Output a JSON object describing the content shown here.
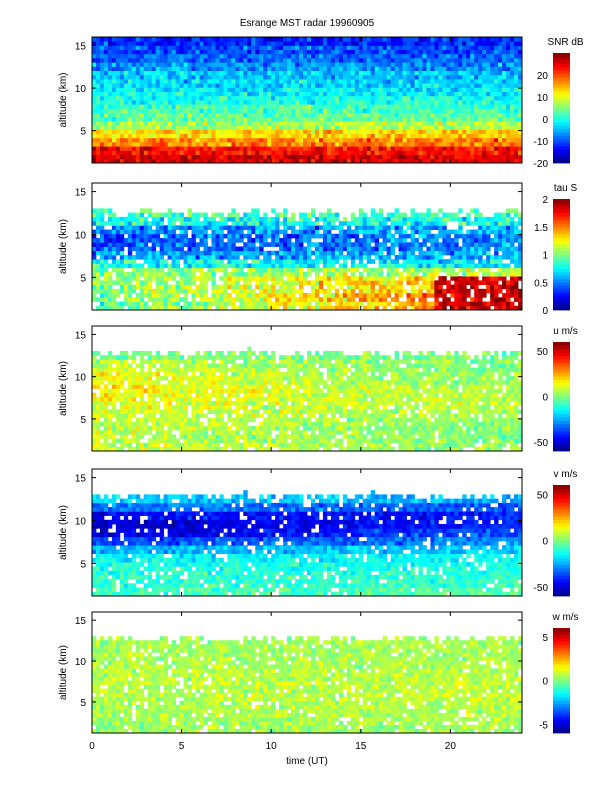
{
  "chart_data": {
    "type": "heatmap",
    "title": "Esrange MST radar 19960905",
    "xlabel": "time (UT)",
    "xlim": [
      0,
      24
    ],
    "xticks": [
      "0",
      "5",
      "10",
      "15",
      "20"
    ],
    "xtick_values": [
      0,
      5,
      10,
      15,
      20
    ],
    "ylim": [
      1.2,
      16
    ],
    "yticks": [
      "5",
      "10",
      "15"
    ],
    "ytick_values": [
      5,
      10,
      15
    ],
    "panels": [
      {
        "ylabel": "altitude (km)",
        "colorbar_label": "SNR dB",
        "clim": [
          -20,
          30
        ],
        "cticks": [
          "20",
          "10",
          "0",
          "-10",
          "-20"
        ],
        "ctick_values": [
          20,
          10,
          0,
          -10,
          -20
        ],
        "altitude_km": [
          1.5,
          2.5,
          3.5,
          4.5,
          5.5,
          6.5,
          7.5,
          8.5,
          9.5,
          10.5,
          11.5,
          12.5,
          13.5,
          14.5,
          15.5
        ],
        "mean_0_12h": [
          26,
          24,
          16,
          13,
          6,
          3,
          2,
          0,
          -2,
          -3,
          -4,
          -6,
          -8,
          -10,
          -12
        ],
        "mean_12_24h": [
          25,
          23,
          18,
          14,
          8,
          4,
          2,
          0,
          -2,
          -3,
          -4,
          -7,
          -9,
          -10,
          -12
        ],
        "noise": 4,
        "top_km": 16,
        "gap_fraction": 0
      },
      {
        "ylabel": "altitude (km)",
        "colorbar_label": "tau S",
        "clim": [
          0,
          2
        ],
        "cticks": [
          "2",
          "1.5",
          "1",
          "0.5",
          "0"
        ],
        "ctick_values": [
          2,
          1.5,
          1,
          0.5,
          0
        ],
        "altitude_km": [
          1.5,
          2.5,
          3.5,
          4.5,
          5.5,
          6.5,
          7.5,
          8.5,
          9.5,
          10.5,
          11.5,
          12.5,
          13.5,
          14.5,
          15.5
        ],
        "mean_0_12h": [
          0.9,
          0.95,
          1.0,
          1.05,
          1.0,
          0.8,
          0.55,
          0.4,
          0.4,
          0.5,
          0.8,
          0.9,
          0.9,
          0.9,
          0.9
        ],
        "mean_12_24h": [
          1.6,
          1.7,
          1.5,
          1.4,
          1.1,
          0.7,
          0.6,
          0.55,
          0.55,
          0.6,
          0.8,
          0.9,
          0.9,
          0.9,
          0.9
        ],
        "noise": 0.2,
        "top_km": 12.2,
        "gap_fraction": 0.12
      },
      {
        "ylabel": "altitude (km)",
        "colorbar_label": "u m/s",
        "clim": [
          -60,
          60
        ],
        "cticks": [
          "50",
          "0",
          "-50"
        ],
        "ctick_values": [
          50,
          0,
          -50
        ],
        "altitude_km": [
          1.5,
          2.5,
          3.5,
          4.5,
          5.5,
          6.5,
          7.5,
          8.5,
          9.5,
          10.5,
          11.5,
          12.5,
          13.5,
          14.5,
          15.5
        ],
        "mean_0_12h": [
          10,
          8,
          8,
          10,
          10,
          12,
          14,
          16,
          14,
          12,
          8,
          0,
          0,
          0,
          0
        ],
        "mean_12_24h": [
          2,
          0,
          0,
          2,
          4,
          6,
          6,
          4,
          2,
          0,
          0,
          0,
          0,
          0,
          0
        ],
        "noise": 8,
        "top_km": 12.5,
        "gap_fraction": 0.12
      },
      {
        "ylabel": "altitude (km)",
        "colorbar_label": "v m/s",
        "clim": [
          -60,
          60
        ],
        "cticks": [
          "50",
          "0",
          "-50"
        ],
        "ctick_values": [
          50,
          0,
          -50
        ],
        "altitude_km": [
          1.5,
          2.5,
          3.5,
          4.5,
          5.5,
          6.5,
          7.5,
          8.5,
          9.5,
          10.5,
          11.5,
          12.5,
          13.5,
          14.5,
          15.5
        ],
        "mean_0_12h": [
          -8,
          -10,
          -10,
          -12,
          -15,
          -25,
          -38,
          -50,
          -52,
          -45,
          -30,
          -20,
          -20,
          -20,
          -20
        ],
        "mean_12_24h": [
          -5,
          -8,
          -10,
          -12,
          -15,
          -20,
          -28,
          -35,
          -40,
          -42,
          -35,
          -25,
          -20,
          -20,
          -20
        ],
        "noise": 7,
        "top_km": 12.5,
        "gap_fraction": 0.12
      },
      {
        "ylabel": "altitude (km)",
        "colorbar_label": "w m/s",
        "clim": [
          -6,
          6
        ],
        "cticks": [
          "5",
          "0",
          "-5"
        ],
        "ctick_values": [
          5,
          0,
          -5
        ],
        "altitude_km": [
          1.5,
          2.5,
          3.5,
          4.5,
          5.5,
          6.5,
          7.5,
          8.5,
          9.5,
          10.5,
          11.5,
          12.5,
          13.5,
          14.5,
          15.5
        ],
        "mean_0_12h": [
          0.3,
          0.4,
          0.5,
          0.5,
          0.6,
          0.6,
          0.7,
          0.7,
          0.6,
          0.5,
          0.5,
          0.5,
          0.5,
          0.5,
          0.5
        ],
        "mean_12_24h": [
          0.4,
          0.5,
          0.6,
          0.7,
          0.8,
          0.8,
          0.8,
          0.7,
          0.6,
          0.5,
          0.5,
          0.5,
          0.5,
          0.5,
          0.5
        ],
        "noise": 0.7,
        "top_km": 12.3,
        "gap_fraction": 0.1
      }
    ]
  }
}
